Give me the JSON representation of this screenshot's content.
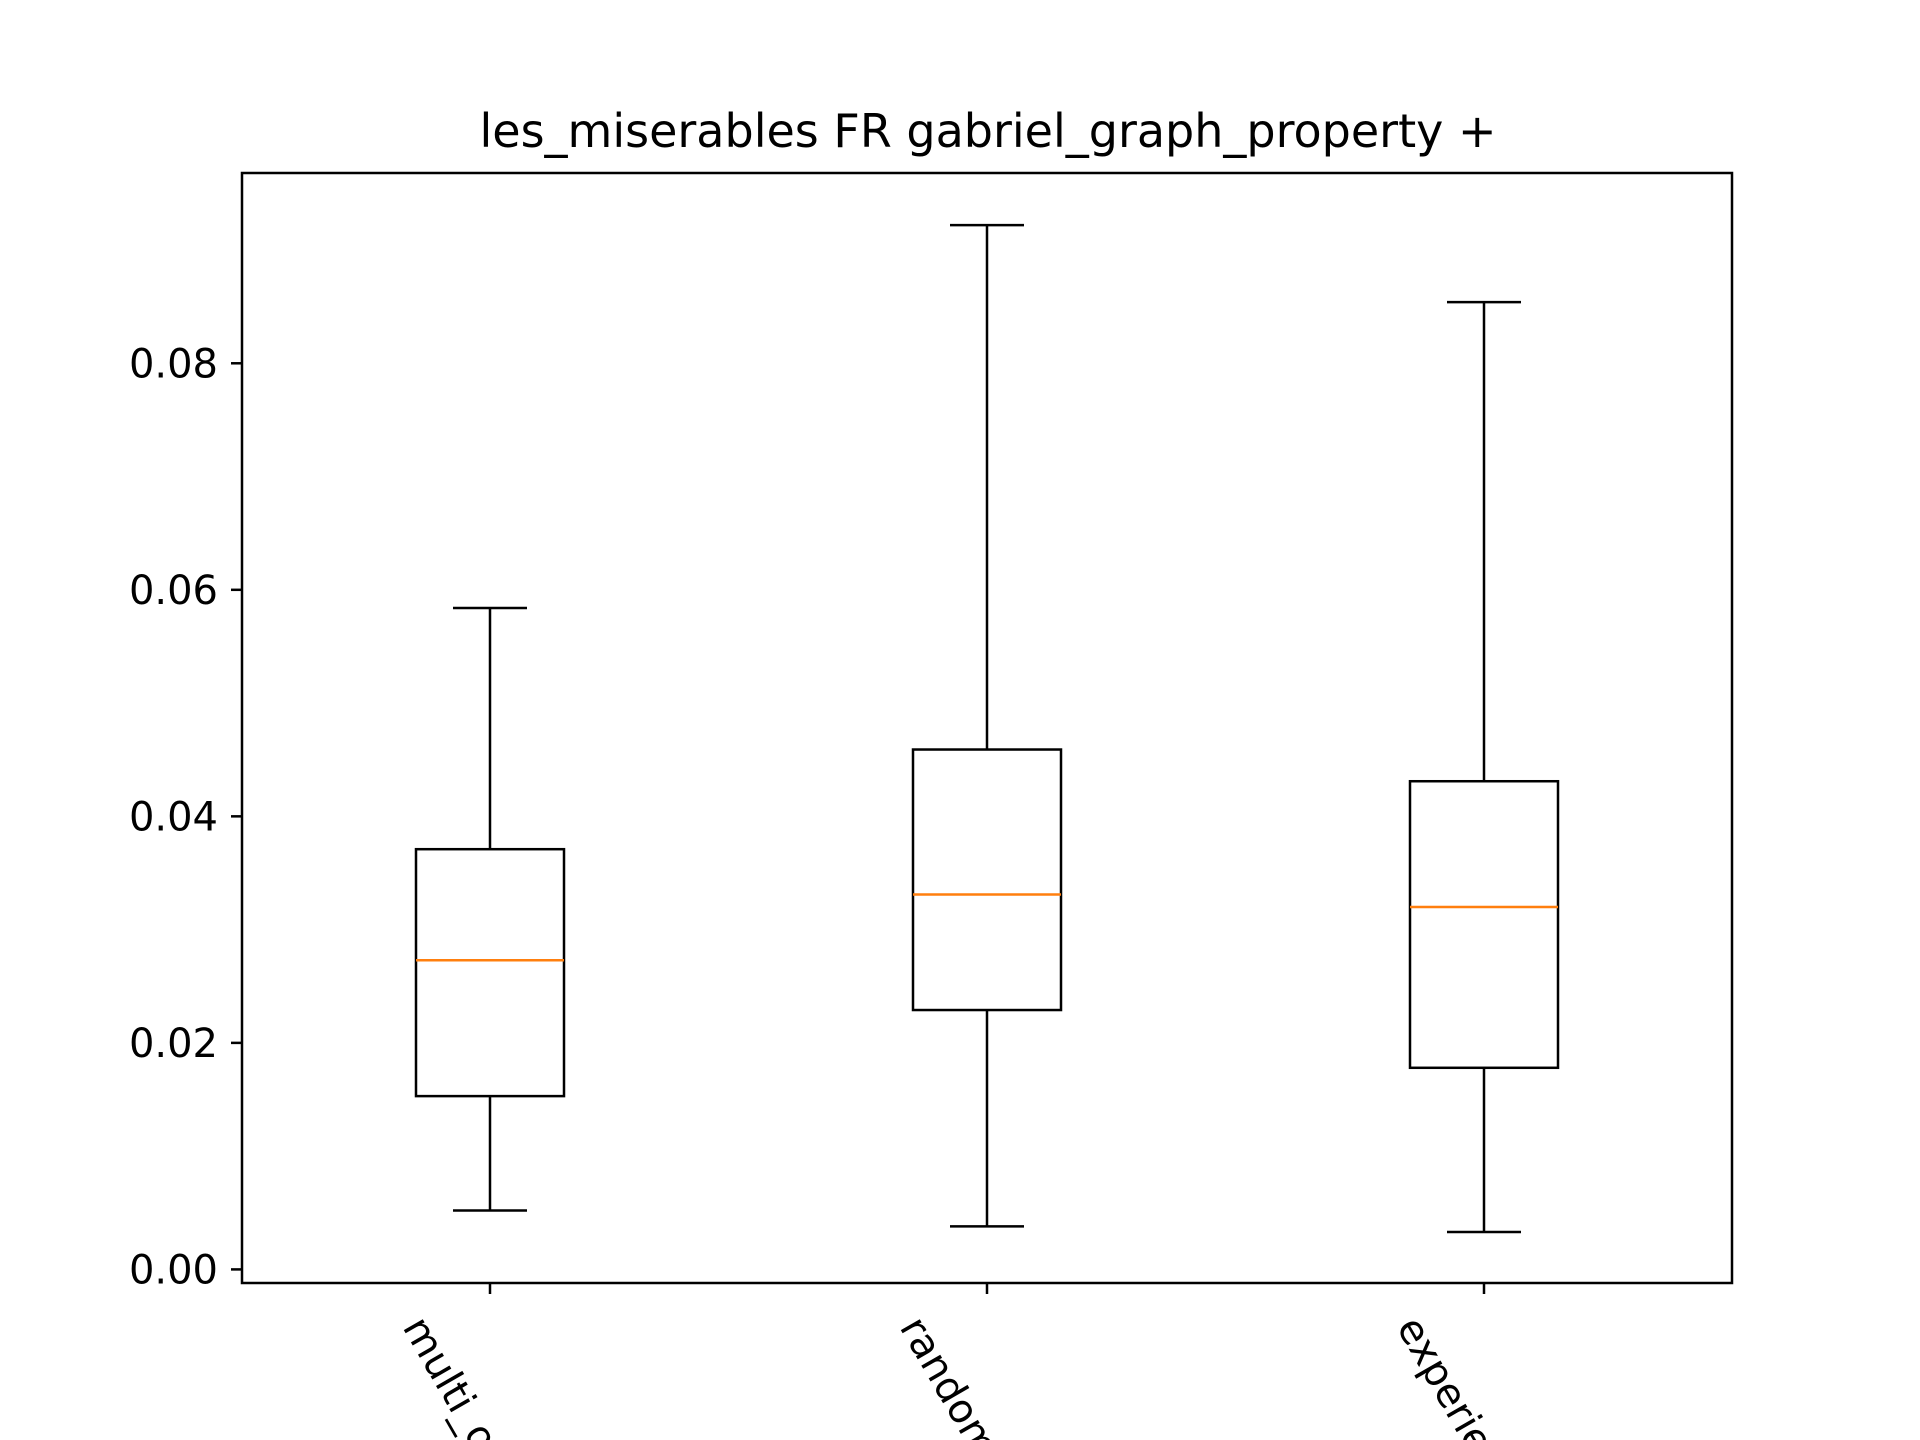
{
  "chart_data": {
    "type": "box",
    "title": "les_miserables FR gabriel_graph_property +",
    "xlabel": "",
    "ylabel": "",
    "ylim": [
      -0.0012,
      0.0968
    ],
    "yticks": [
      0.0,
      0.02,
      0.04,
      0.06,
      0.08
    ],
    "ytick_labels": [
      "0.00",
      "0.02",
      "0.04",
      "0.06",
      "0.08"
    ],
    "categories": [
      "multi_o",
      "random",
      "experie"
    ],
    "boxes": [
      {
        "label": "multi_o",
        "whisker_low": 0.0052,
        "q1": 0.0153,
        "median": 0.0273,
        "q3": 0.0371,
        "whisker_high": 0.0584
      },
      {
        "label": "random",
        "whisker_low": 0.0038,
        "q1": 0.0229,
        "median": 0.0331,
        "q3": 0.0459,
        "whisker_high": 0.0922
      },
      {
        "label": "experie",
        "whisker_low": 0.0033,
        "q1": 0.0178,
        "median": 0.032,
        "q3": 0.0431,
        "whisker_high": 0.0854
      }
    ],
    "grid": false,
    "colors": {
      "median": "#ff7f0e",
      "box": "#000000"
    }
  }
}
